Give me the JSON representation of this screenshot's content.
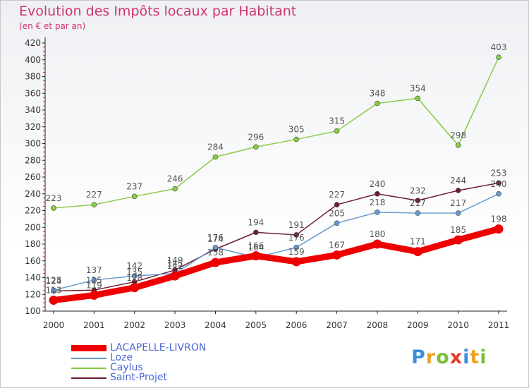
{
  "header": {
    "title": "Evolution des Impôts locaux par Habitant",
    "subtitle": "(en € et par an)"
  },
  "chart_data": {
    "type": "line",
    "title": "Evolution des Impôts locaux par Habitant",
    "subtitle": "(en € et par an)",
    "xlabel": "",
    "ylabel": "",
    "x": [
      "2000",
      "2001",
      "2002",
      "2003",
      "2004",
      "2005",
      "2006",
      "2007",
      "2008",
      "2009",
      "2010",
      "2011"
    ],
    "ylim": [
      100,
      420
    ],
    "yticks": [
      100,
      120,
      140,
      160,
      180,
      200,
      220,
      240,
      260,
      280,
      300,
      320,
      340,
      360,
      380,
      400,
      420
    ],
    "grid": false,
    "legend_position": "bottom-left",
    "series": [
      {
        "name": "LACAPELLE-LIVRON",
        "color": "#ee0000",
        "values": [
          113,
          119,
          128,
          142,
          158,
          166,
          159,
          167,
          180,
          171,
          185,
          198
        ]
      },
      {
        "name": "Loze",
        "color": "#6699cc",
        "values": [
          125,
          137,
          142,
          145,
          176,
          164,
          176,
          205,
          218,
          217,
          217,
          240
        ]
      },
      {
        "name": "Caylus",
        "color": "#88cc44",
        "values": [
          223,
          227,
          237,
          246,
          284,
          296,
          305,
          315,
          348,
          354,
          298,
          403
        ]
      },
      {
        "name": "Saint-Projet",
        "color": "#6b1c2e",
        "values": [
          124,
          125,
          135,
          149,
          174,
          194,
          191,
          227,
          240,
          232,
          244,
          253
        ]
      }
    ],
    "series_draw_order": [
      2,
      3,
      1,
      0
    ]
  },
  "logo": {
    "letters": [
      "P",
      "r",
      "o",
      "x",
      "i",
      "t",
      "i"
    ],
    "colors": [
      "#3a8fd8",
      "#f0a020",
      "#7abf3a",
      "#e23c2e",
      "#3a8fd8",
      "#f0a020",
      "#7abf3a"
    ]
  }
}
